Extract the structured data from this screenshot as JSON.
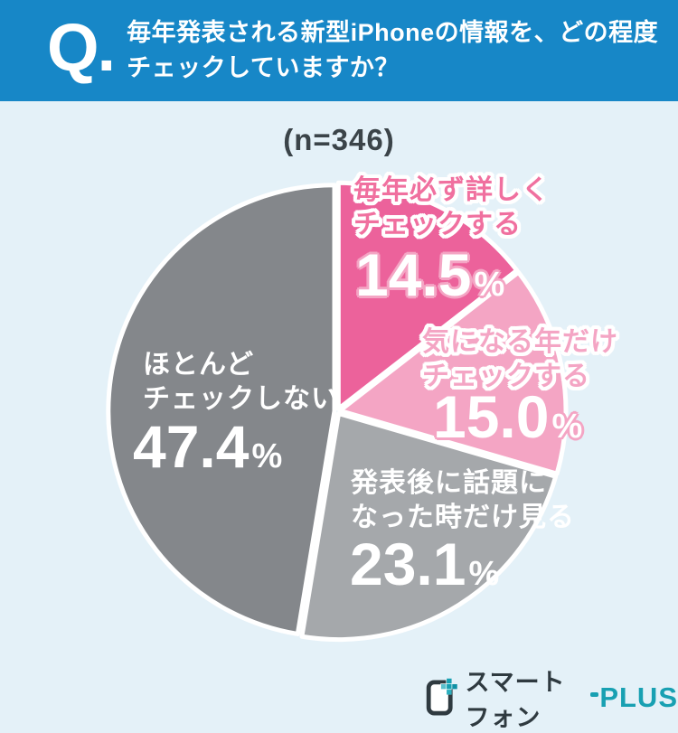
{
  "header": {
    "q_label": "Q.",
    "question_line1": "毎年発表される新型iPhoneの情報を、どの程度",
    "question_line2": "チェックしていますか？",
    "bg_color": "#1787C7",
    "text_color": "#FFFFFF"
  },
  "survey": {
    "sample_size_label": "(n=346)",
    "sample_size": 346
  },
  "chart_data": {
    "type": "pie",
    "title": "毎年発表される新型iPhoneの情報を、どの程度チェックしていますか？",
    "subtitle": "(n=346)",
    "start_angle_deg": 0,
    "direction": "clockwise",
    "legend": "labels-on-slices",
    "separator_color": "#FFFFFF",
    "segments": [
      {
        "label": "毎年必ず詳しくチェックする",
        "label_lines": [
          "毎年必ず詳しく",
          "チェックする"
        ],
        "value": 14.5,
        "value_text": "14.5",
        "unit": "%",
        "color": "#EC629B"
      },
      {
        "label": "気になる年だけチェックする",
        "label_lines": [
          "気になる年だけ",
          "チェックする"
        ],
        "value": 15.0,
        "value_text": "15.0",
        "unit": "%",
        "color": "#F4A5C4"
      },
      {
        "label": "発表後に話題になった時だけ見る",
        "label_lines": [
          "発表後に話題に",
          "なった時だけ見る"
        ],
        "value": 23.1,
        "value_text": "23.1",
        "unit": "%",
        "color": "#A5A8AB"
      },
      {
        "label": "ほとんどチェックしない",
        "label_lines": [
          "ほとんど",
          "チェックしない"
        ],
        "value": 47.4,
        "value_text": "47.4",
        "unit": "%",
        "color": "#84878B"
      }
    ]
  },
  "footer": {
    "logo": {
      "icon_name": "smartphone-plus-icon",
      "brand_dark_text": "スマートフォン",
      "brand_accent_text": "PLUS",
      "dark_color": "#2F3A40",
      "accent_color": "#18A0B2"
    }
  },
  "colors": {
    "page_bg": "#E4F1F8",
    "n_label_text": "#3B4449"
  }
}
